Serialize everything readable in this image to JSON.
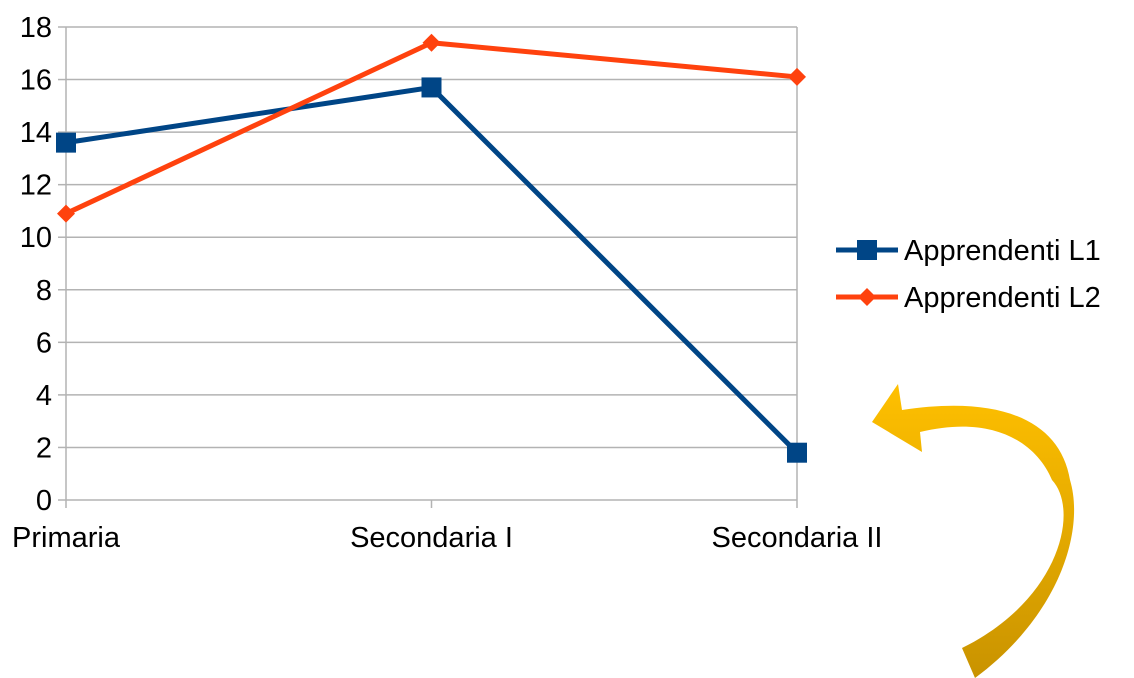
{
  "chart_data": {
    "type": "line",
    "title": "",
    "xlabel": "",
    "ylabel": "",
    "categories": [
      "Primaria",
      "Secondaria I",
      "Secondaria II"
    ],
    "series": [
      {
        "name": "Apprendenti L1",
        "values": [
          13.6,
          15.7,
          1.8
        ],
        "color": "#004586",
        "marker": "square"
      },
      {
        "name": "Apprendenti L2",
        "values": [
          10.9,
          17.4,
          16.1
        ],
        "color": "#ff420e",
        "marker": "diamond"
      }
    ],
    "ylim": [
      0,
      18
    ],
    "yticks": [
      "0",
      "2",
      "4",
      "6",
      "8",
      "10",
      "12",
      "14",
      "16",
      "18"
    ],
    "grid": true,
    "legend_position": "right"
  },
  "decoration": {
    "arrow_icon": "curved-arrow-icon",
    "arrow_color": "#ffb800"
  }
}
